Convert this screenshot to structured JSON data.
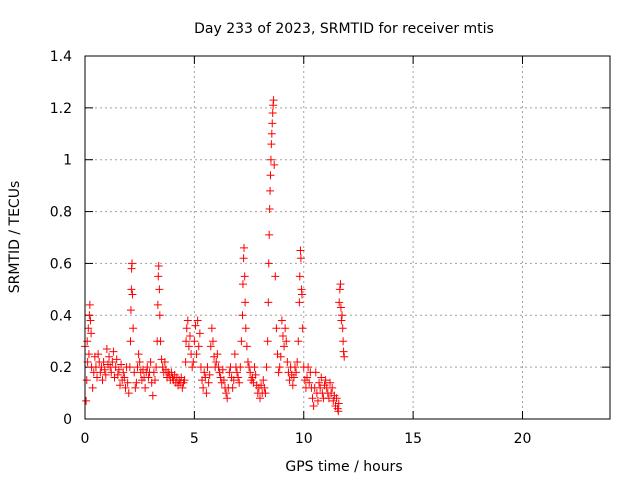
{
  "chart_data": {
    "type": "scatter",
    "title": "Day 233 of 2023, SRMTID for receiver mtis",
    "xlabel": "GPS time / hours",
    "ylabel": "SRMTID / TECUs",
    "xlim": [
      0,
      24
    ],
    "ylim": [
      0,
      1.4
    ],
    "xticks": [
      0,
      5,
      10,
      15,
      20
    ],
    "yticks": [
      0,
      0.2,
      0.4,
      0.6,
      0.8,
      1,
      1.2,
      1.4
    ],
    "xtick_labels": [
      "0",
      "5",
      "10",
      "15",
      "20"
    ],
    "ytick_labels": [
      "0",
      "0.2",
      "0.4",
      "0.6",
      "0.8",
      "1",
      "1.2",
      "1.4"
    ],
    "grid": true,
    "marker": "+",
    "color": "#ff0000",
    "series": [
      {
        "name": "SRMTID",
        "points": [
          [
            0.0,
            0.28
          ],
          [
            0.05,
            0.07
          ],
          [
            0.08,
            0.15
          ],
          [
            0.1,
            0.3
          ],
          [
            0.12,
            0.22
          ],
          [
            0.15,
            0.35
          ],
          [
            0.18,
            0.25
          ],
          [
            0.2,
            0.4
          ],
          [
            0.22,
            0.44
          ],
          [
            0.25,
            0.38
          ],
          [
            0.28,
            0.33
          ],
          [
            0.3,
            0.2
          ],
          [
            0.35,
            0.12
          ],
          [
            0.4,
            0.18
          ],
          [
            0.45,
            0.24
          ],
          [
            0.5,
            0.2
          ],
          [
            0.55,
            0.16
          ],
          [
            0.6,
            0.25
          ],
          [
            0.65,
            0.22
          ],
          [
            0.7,
            0.18
          ],
          [
            0.75,
            0.2
          ],
          [
            0.8,
            0.15
          ],
          [
            0.85,
            0.22
          ],
          [
            0.9,
            0.19
          ],
          [
            0.95,
            0.17
          ],
          [
            1.0,
            0.27
          ],
          [
            1.05,
            0.21
          ],
          [
            1.1,
            0.24
          ],
          [
            1.15,
            0.2
          ],
          [
            1.2,
            0.18
          ],
          [
            1.25,
            0.22
          ],
          [
            1.3,
            0.26
          ],
          [
            1.35,
            0.16
          ],
          [
            1.4,
            0.2
          ],
          [
            1.45,
            0.23
          ],
          [
            1.5,
            0.17
          ],
          [
            1.55,
            0.19
          ],
          [
            1.6,
            0.13
          ],
          [
            1.65,
            0.21
          ],
          [
            1.7,
            0.15
          ],
          [
            1.75,
            0.18
          ],
          [
            1.8,
            0.16
          ],
          [
            1.85,
            0.12
          ],
          [
            1.9,
            0.2
          ],
          [
            1.95,
            0.14
          ],
          [
            2.0,
            0.1
          ],
          [
            2.05,
            0.2
          ],
          [
            2.08,
            0.3
          ],
          [
            2.1,
            0.42
          ],
          [
            2.12,
            0.5
          ],
          [
            2.13,
            0.58
          ],
          [
            2.15,
            0.6
          ],
          [
            2.17,
            0.48
          ],
          [
            2.2,
            0.35
          ],
          [
            2.25,
            0.18
          ],
          [
            2.3,
            0.12
          ],
          [
            2.35,
            0.14
          ],
          [
            2.4,
            0.2
          ],
          [
            2.45,
            0.25
          ],
          [
            2.5,
            0.22
          ],
          [
            2.55,
            0.18
          ],
          [
            2.6,
            0.15
          ],
          [
            2.65,
            0.19
          ],
          [
            2.7,
            0.16
          ],
          [
            2.75,
            0.12
          ],
          [
            2.8,
            0.18
          ],
          [
            2.85,
            0.2
          ],
          [
            2.9,
            0.16
          ],
          [
            2.95,
            0.18
          ],
          [
            3.0,
            0.22
          ],
          [
            3.05,
            0.14
          ],
          [
            3.1,
            0.09
          ],
          [
            3.15,
            0.18
          ],
          [
            3.2,
            0.15
          ],
          [
            3.25,
            0.2
          ],
          [
            3.3,
            0.3
          ],
          [
            3.33,
            0.44
          ],
          [
            3.35,
            0.55
          ],
          [
            3.37,
            0.59
          ],
          [
            3.4,
            0.5
          ],
          [
            3.42,
            0.4
          ],
          [
            3.45,
            0.3
          ],
          [
            3.5,
            0.23
          ],
          [
            3.55,
            0.2
          ],
          [
            3.6,
            0.18
          ],
          [
            3.65,
            0.22
          ],
          [
            3.7,
            0.19
          ],
          [
            3.75,
            0.16
          ],
          [
            3.8,
            0.18
          ],
          [
            3.85,
            0.17
          ],
          [
            3.9,
            0.15
          ],
          [
            3.95,
            0.18
          ],
          [
            4.0,
            0.16
          ],
          [
            4.05,
            0.15
          ],
          [
            4.1,
            0.17
          ],
          [
            4.15,
            0.14
          ],
          [
            4.2,
            0.16
          ],
          [
            4.25,
            0.13
          ],
          [
            4.3,
            0.15
          ],
          [
            4.35,
            0.14
          ],
          [
            4.4,
            0.16
          ],
          [
            4.45,
            0.12
          ],
          [
            4.5,
            0.14
          ],
          [
            4.55,
            0.15
          ],
          [
            4.6,
            0.22
          ],
          [
            4.62,
            0.3
          ],
          [
            4.65,
            0.35
          ],
          [
            4.7,
            0.38
          ],
          [
            4.75,
            0.28
          ],
          [
            4.8,
            0.32
          ],
          [
            4.85,
            0.25
          ],
          [
            4.9,
            0.2
          ],
          [
            4.95,
            0.22
          ],
          [
            5.0,
            0.3
          ],
          [
            5.05,
            0.36
          ],
          [
            5.1,
            0.25
          ],
          [
            5.15,
            0.38
          ],
          [
            5.2,
            0.28
          ],
          [
            5.25,
            0.33
          ],
          [
            5.3,
            0.2
          ],
          [
            5.35,
            0.15
          ],
          [
            5.4,
            0.12
          ],
          [
            5.45,
            0.18
          ],
          [
            5.5,
            0.16
          ],
          [
            5.55,
            0.1
          ],
          [
            5.6,
            0.2
          ],
          [
            5.65,
            0.14
          ],
          [
            5.7,
            0.17
          ],
          [
            5.75,
            0.28
          ],
          [
            5.8,
            0.35
          ],
          [
            5.85,
            0.3
          ],
          [
            5.9,
            0.24
          ],
          [
            5.95,
            0.2
          ],
          [
            6.0,
            0.22
          ],
          [
            6.05,
            0.25
          ],
          [
            6.1,
            0.2
          ],
          [
            6.15,
            0.18
          ],
          [
            6.2,
            0.16
          ],
          [
            6.25,
            0.14
          ],
          [
            6.3,
            0.19
          ],
          [
            6.35,
            0.15
          ],
          [
            6.4,
            0.12
          ],
          [
            6.45,
            0.1
          ],
          [
            6.5,
            0.08
          ],
          [
            6.55,
            0.12
          ],
          [
            6.6,
            0.18
          ],
          [
            6.65,
            0.2
          ],
          [
            6.7,
            0.16
          ],
          [
            6.75,
            0.12
          ],
          [
            6.8,
            0.15
          ],
          [
            6.85,
            0.25
          ],
          [
            6.9,
            0.2
          ],
          [
            6.95,
            0.18
          ],
          [
            7.0,
            0.16
          ],
          [
            7.05,
            0.14
          ],
          [
            7.1,
            0.2
          ],
          [
            7.15,
            0.3
          ],
          [
            7.2,
            0.4
          ],
          [
            7.22,
            0.52
          ],
          [
            7.25,
            0.62
          ],
          [
            7.27,
            0.66
          ],
          [
            7.3,
            0.55
          ],
          [
            7.32,
            0.45
          ],
          [
            7.35,
            0.35
          ],
          [
            7.4,
            0.28
          ],
          [
            7.45,
            0.22
          ],
          [
            7.5,
            0.2
          ],
          [
            7.55,
            0.18
          ],
          [
            7.6,
            0.15
          ],
          [
            7.65,
            0.16
          ],
          [
            7.7,
            0.14
          ],
          [
            7.75,
            0.2
          ],
          [
            7.8,
            0.17
          ],
          [
            7.85,
            0.13
          ],
          [
            7.9,
            0.1
          ],
          [
            7.95,
            0.12
          ],
          [
            8.0,
            0.08
          ],
          [
            8.05,
            0.13
          ],
          [
            8.1,
            0.1
          ],
          [
            8.15,
            0.15
          ],
          [
            8.2,
            0.12
          ],
          [
            8.25,
            0.1
          ],
          [
            8.3,
            0.2
          ],
          [
            8.35,
            0.3
          ],
          [
            8.38,
            0.45
          ],
          [
            8.4,
            0.6
          ],
          [
            8.42,
            0.71
          ],
          [
            8.44,
            0.81
          ],
          [
            8.46,
            0.88
          ],
          [
            8.48,
            0.94
          ],
          [
            8.5,
            1.0
          ],
          [
            8.52,
            1.06
          ],
          [
            8.54,
            1.1
          ],
          [
            8.56,
            1.14
          ],
          [
            8.58,
            1.18
          ],
          [
            8.6,
            1.21
          ],
          [
            8.62,
            1.23
          ],
          [
            8.65,
            0.98
          ],
          [
            8.7,
            0.55
          ],
          [
            8.75,
            0.35
          ],
          [
            8.8,
            0.25
          ],
          [
            8.85,
            0.18
          ],
          [
            8.9,
            0.2
          ],
          [
            8.95,
            0.24
          ],
          [
            9.0,
            0.38
          ],
          [
            9.05,
            0.32
          ],
          [
            9.1,
            0.28
          ],
          [
            9.15,
            0.35
          ],
          [
            9.2,
            0.3
          ],
          [
            9.25,
            0.22
          ],
          [
            9.3,
            0.18
          ],
          [
            9.35,
            0.15
          ],
          [
            9.4,
            0.2
          ],
          [
            9.45,
            0.17
          ],
          [
            9.5,
            0.13
          ],
          [
            9.55,
            0.16
          ],
          [
            9.6,
            0.2
          ],
          [
            9.65,
            0.18
          ],
          [
            9.7,
            0.22
          ],
          [
            9.75,
            0.3
          ],
          [
            9.8,
            0.45
          ],
          [
            9.82,
            0.55
          ],
          [
            9.85,
            0.65
          ],
          [
            9.87,
            0.62
          ],
          [
            9.9,
            0.5
          ],
          [
            9.92,
            0.48
          ],
          [
            9.95,
            0.35
          ],
          [
            10.0,
            0.2
          ],
          [
            10.05,
            0.15
          ],
          [
            10.1,
            0.12
          ],
          [
            10.15,
            0.16
          ],
          [
            10.2,
            0.2
          ],
          [
            10.25,
            0.14
          ],
          [
            10.3,
            0.18
          ],
          [
            10.35,
            0.12
          ],
          [
            10.4,
            0.08
          ],
          [
            10.45,
            0.05
          ],
          [
            10.5,
            0.12
          ],
          [
            10.55,
            0.18
          ],
          [
            10.6,
            0.1
          ],
          [
            10.65,
            0.07
          ],
          [
            10.7,
            0.14
          ],
          [
            10.75,
            0.12
          ],
          [
            10.8,
            0.16
          ],
          [
            10.85,
            0.1
          ],
          [
            10.9,
            0.08
          ],
          [
            10.95,
            0.13
          ],
          [
            11.0,
            0.15
          ],
          [
            11.05,
            0.12
          ],
          [
            11.1,
            0.1
          ],
          [
            11.15,
            0.08
          ],
          [
            11.2,
            0.14
          ],
          [
            11.25,
            0.1
          ],
          [
            11.3,
            0.12
          ],
          [
            11.35,
            0.07
          ],
          [
            11.4,
            0.09
          ],
          [
            11.45,
            0.05
          ],
          [
            11.5,
            0.08
          ],
          [
            11.55,
            0.04
          ],
          [
            11.58,
            0.03
          ],
          [
            11.6,
            0.06
          ],
          [
            11.62,
            0.45
          ],
          [
            11.65,
            0.5
          ],
          [
            11.68,
            0.52
          ],
          [
            11.7,
            0.43
          ],
          [
            11.72,
            0.38
          ],
          [
            11.75,
            0.4
          ],
          [
            11.78,
            0.35
          ],
          [
            11.8,
            0.3
          ],
          [
            11.82,
            0.26
          ],
          [
            11.85,
            0.24
          ]
        ]
      }
    ]
  }
}
